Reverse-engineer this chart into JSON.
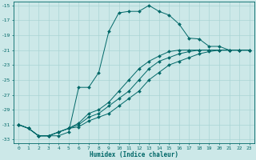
{
  "xlabel": "Humidex (Indice chaleur)",
  "xlim": [
    -0.5,
    23.5
  ],
  "ylim": [
    -33.5,
    -14.5
  ],
  "yticks": [
    -15,
    -17,
    -19,
    -21,
    -23,
    -25,
    -27,
    -29,
    -31,
    -33
  ],
  "xticks": [
    0,
    1,
    2,
    3,
    4,
    5,
    6,
    7,
    8,
    9,
    10,
    11,
    12,
    13,
    14,
    15,
    16,
    17,
    18,
    19,
    20,
    21,
    22,
    23
  ],
  "bg_color": "#cce8e8",
  "line_color": "#006868",
  "grid_major_color": "#aad4d4",
  "grid_minor_color": "#bcdede",
  "lines": [
    {
      "x": [
        0,
        1,
        2,
        3,
        4,
        5,
        6,
        7,
        8,
        9,
        10,
        11,
        12,
        13,
        14,
        15,
        16,
        17,
        18,
        19,
        20,
        21,
        22,
        23
      ],
      "y": [
        -31,
        -31.5,
        -32.5,
        -32.5,
        -32.5,
        -32,
        -26,
        -26,
        -24,
        -18.5,
        -16,
        -15.8,
        -15.8,
        -15,
        -15.8,
        -16.3,
        -17.5,
        -19.4,
        -19.5,
        -20.5,
        -20.5,
        -21,
        -21,
        -21
      ]
    },
    {
      "x": [
        0,
        1,
        2,
        3,
        4,
        5,
        6,
        7,
        8,
        9,
        10,
        11,
        12,
        13,
        14,
        15,
        16,
        17,
        18,
        19,
        20,
        21,
        22,
        23
      ],
      "y": [
        -31,
        -31.5,
        -32.5,
        -32.5,
        -32,
        -31.5,
        -30.8,
        -29.5,
        -29,
        -28,
        -26.5,
        -25,
        -23.5,
        -22.5,
        -21.8,
        -21.2,
        -21,
        -21,
        -21,
        -21,
        -21,
        -21,
        -21,
        -21
      ]
    },
    {
      "x": [
        0,
        1,
        2,
        3,
        4,
        5,
        6,
        7,
        8,
        9,
        10,
        11,
        12,
        13,
        14,
        15,
        16,
        17,
        18,
        19,
        20,
        21,
        22,
        23
      ],
      "y": [
        -31,
        -31.5,
        -32.5,
        -32.5,
        -32,
        -31.5,
        -31,
        -30,
        -29.5,
        -28.5,
        -27.5,
        -26.5,
        -25,
        -23.5,
        -22.5,
        -22,
        -21.5,
        -21.2,
        -21,
        -21,
        -21,
        -21,
        -21,
        -21
      ]
    },
    {
      "x": [
        0,
        1,
        2,
        3,
        4,
        5,
        6,
        7,
        8,
        9,
        10,
        11,
        12,
        13,
        14,
        15,
        16,
        17,
        18,
        19,
        20,
        21,
        22,
        23
      ],
      "y": [
        -31,
        -31.5,
        -32.5,
        -32.5,
        -32,
        -31.5,
        -31.3,
        -30.5,
        -30,
        -29.5,
        -28.5,
        -27.5,
        -26.5,
        -25,
        -24,
        -23,
        -22.5,
        -22,
        -21.5,
        -21.2,
        -21,
        -21,
        -21,
        -21
      ]
    }
  ]
}
